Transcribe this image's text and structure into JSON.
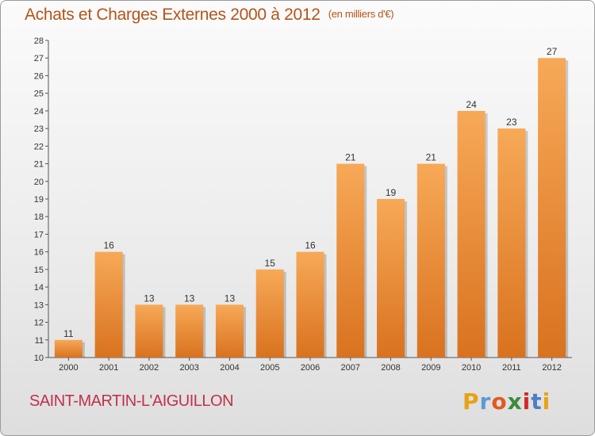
{
  "chart_data": {
    "type": "bar",
    "title": "Achats et Charges Externes 2000 à 2012",
    "unit": "(en milliers d'€)",
    "categories": [
      "2000",
      "2001",
      "2002",
      "2003",
      "2004",
      "2005",
      "2006",
      "2007",
      "2008",
      "2009",
      "2010",
      "2011",
      "2012"
    ],
    "values": [
      11,
      16,
      13,
      13,
      13,
      15,
      16,
      21,
      19,
      21,
      24,
      23,
      27
    ],
    "ylim": [
      10,
      28
    ],
    "yticks": [
      10,
      11,
      12,
      13,
      14,
      15,
      16,
      17,
      18,
      19,
      20,
      21,
      22,
      23,
      24,
      25,
      26,
      27,
      28
    ],
    "grid": false,
    "bar_color": "#f0913a",
    "bar_color_light": "#f7a957",
    "bar_color_dark": "#d9721f"
  },
  "footer": {
    "commune": "SAINT-MARTIN-L'AIGUILLON",
    "logo": {
      "letters": [
        "P",
        "r",
        "o",
        "x",
        "i",
        "t",
        "i"
      ],
      "colors": [
        "#e8a214",
        "#5a9bd4",
        "#e05a1e",
        "#3c8b3c",
        "#d42a2a",
        "#4a7fc7",
        "#e8a214"
      ]
    }
  },
  "colors": {
    "title": "#b4541a",
    "commune": "#c0314a"
  }
}
